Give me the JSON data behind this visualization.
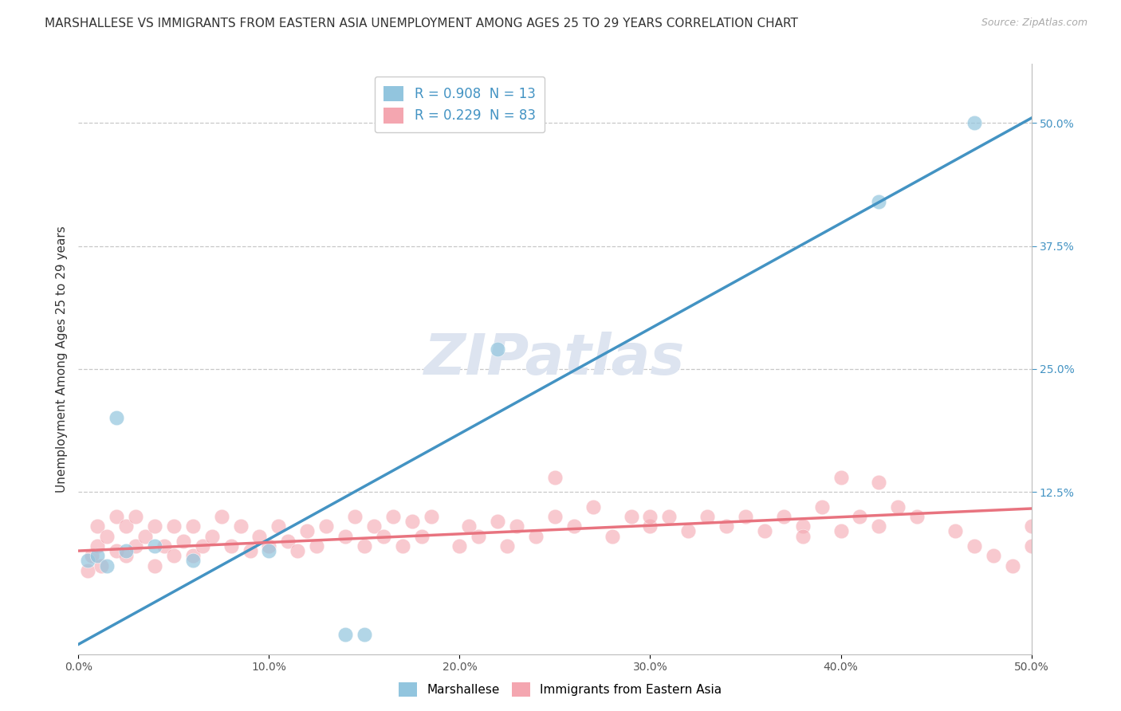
{
  "title": "MARSHALLESE VS IMMIGRANTS FROM EASTERN ASIA UNEMPLOYMENT AMONG AGES 25 TO 29 YEARS CORRELATION CHART",
  "source": "Source: ZipAtlas.com",
  "ylabel": "Unemployment Among Ages 25 to 29 years",
  "xlim": [
    0,
    0.5
  ],
  "ylim": [
    -0.04,
    0.56
  ],
  "xticks": [
    0.0,
    0.1,
    0.2,
    0.3,
    0.4,
    0.5
  ],
  "xtick_labels": [
    "0.0%",
    "10.0%",
    "20.0%",
    "30.0%",
    "40.0%",
    "50.0%"
  ],
  "yticks_right": [
    0.125,
    0.25,
    0.375,
    0.5
  ],
  "ytick_labels_right": [
    "12.5%",
    "25.0%",
    "37.5%",
    "50.0%"
  ],
  "blue_R": 0.908,
  "blue_N": 13,
  "pink_R": 0.229,
  "pink_N": 83,
  "blue_color": "#92c5de",
  "pink_color": "#f4a6b0",
  "blue_line_color": "#4393c3",
  "pink_line_color": "#e8737f",
  "legend_label_blue": "Marshallese",
  "legend_label_pink": "Immigrants from Eastern Asia",
  "blue_scatter_x": [
    0.005,
    0.01,
    0.015,
    0.02,
    0.025,
    0.04,
    0.06,
    0.1,
    0.14,
    0.15,
    0.22,
    0.42,
    0.47
  ],
  "blue_scatter_y": [
    0.055,
    0.06,
    0.05,
    0.2,
    0.065,
    0.07,
    0.055,
    0.065,
    -0.02,
    -0.02,
    0.27,
    0.42,
    0.5
  ],
  "pink_scatter_x": [
    0.005,
    0.007,
    0.01,
    0.01,
    0.012,
    0.015,
    0.02,
    0.02,
    0.025,
    0.025,
    0.03,
    0.03,
    0.035,
    0.04,
    0.04,
    0.045,
    0.05,
    0.05,
    0.055,
    0.06,
    0.06,
    0.065,
    0.07,
    0.075,
    0.08,
    0.085,
    0.09,
    0.095,
    0.1,
    0.105,
    0.11,
    0.115,
    0.12,
    0.125,
    0.13,
    0.14,
    0.145,
    0.15,
    0.155,
    0.16,
    0.165,
    0.17,
    0.175,
    0.18,
    0.185,
    0.2,
    0.205,
    0.21,
    0.22,
    0.225,
    0.23,
    0.24,
    0.25,
    0.26,
    0.27,
    0.28,
    0.29,
    0.3,
    0.31,
    0.32,
    0.33,
    0.34,
    0.35,
    0.36,
    0.37,
    0.38,
    0.39,
    0.4,
    0.41,
    0.42,
    0.43,
    0.44,
    0.46,
    0.47,
    0.48,
    0.49,
    0.5,
    0.5,
    0.42,
    0.25,
    0.3,
    0.38,
    0.4
  ],
  "pink_scatter_y": [
    0.045,
    0.06,
    0.07,
    0.09,
    0.05,
    0.08,
    0.065,
    0.1,
    0.06,
    0.09,
    0.07,
    0.1,
    0.08,
    0.05,
    0.09,
    0.07,
    0.06,
    0.09,
    0.075,
    0.06,
    0.09,
    0.07,
    0.08,
    0.1,
    0.07,
    0.09,
    0.065,
    0.08,
    0.07,
    0.09,
    0.075,
    0.065,
    0.085,
    0.07,
    0.09,
    0.08,
    0.1,
    0.07,
    0.09,
    0.08,
    0.1,
    0.07,
    0.095,
    0.08,
    0.1,
    0.07,
    0.09,
    0.08,
    0.095,
    0.07,
    0.09,
    0.08,
    0.1,
    0.09,
    0.11,
    0.08,
    0.1,
    0.09,
    0.1,
    0.085,
    0.1,
    0.09,
    0.1,
    0.085,
    0.1,
    0.09,
    0.11,
    0.085,
    0.1,
    0.09,
    0.11,
    0.1,
    0.085,
    0.07,
    0.06,
    0.05,
    0.09,
    0.07,
    0.135,
    0.14,
    0.1,
    0.08,
    0.14
  ],
  "blue_trend_x": [
    0.0,
    0.5
  ],
  "blue_trend_y": [
    -0.03,
    0.505
  ],
  "pink_trend_x": [
    0.0,
    0.5
  ],
  "pink_trend_y": [
    0.065,
    0.108
  ],
  "background_color": "#ffffff",
  "grid_color": "#c8c8c8",
  "title_fontsize": 11,
  "axis_label_fontsize": 11,
  "tick_fontsize": 10,
  "legend_fontsize": 12,
  "watermark": "ZIPatlas",
  "watermark_color": "#dde4f0",
  "watermark_fontsize": 52
}
